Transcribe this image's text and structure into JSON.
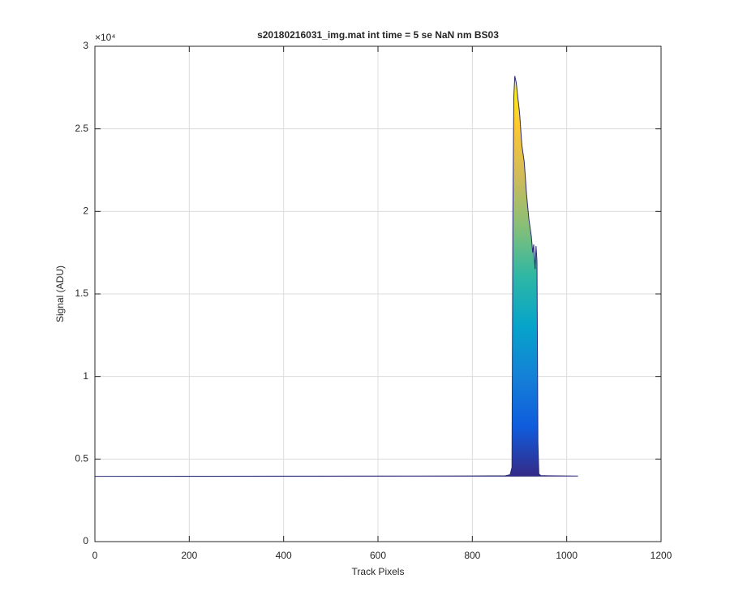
{
  "chart_data": {
    "type": "area",
    "title": "s20180216031_img.mat int time = 5 se  NaN nm BS03",
    "xlabel": "Track Pixels",
    "ylabel": "Signal (ADU)",
    "y_exponent": "×10⁴",
    "x": [
      0,
      200,
      400,
      600,
      800,
      870,
      880,
      884,
      886,
      888,
      890,
      893,
      896,
      900,
      905,
      910,
      915,
      920,
      925,
      928,
      930,
      933,
      935,
      937,
      939,
      941,
      945,
      960,
      1000,
      1024
    ],
    "values": [
      3950,
      3960,
      3965,
      3970,
      3980,
      3990,
      4050,
      4500,
      20000,
      27000,
      28200,
      27800,
      27000,
      26000,
      24000,
      23000,
      21000,
      19500,
      18500,
      17500,
      18000,
      16500,
      17900,
      17000,
      6000,
      4100,
      4000,
      3990,
      3980,
      3970
    ],
    "line_color": "#2a2a7a",
    "colormap": [
      "#352a87",
      "#0f5cdd",
      "#1481d6",
      "#06a4ca",
      "#2eb7a4",
      "#87bf77",
      "#d1bb59",
      "#fec832",
      "#f9fb0e"
    ],
    "xlim": [
      0,
      1200
    ],
    "xticks": [
      0,
      200,
      400,
      600,
      800,
      1000,
      1200
    ],
    "ylim": [
      0,
      30000
    ],
    "yticks": [
      {
        "value": 0,
        "label": "0"
      },
      {
        "value": 5000,
        "label": "0.5"
      },
      {
        "value": 10000,
        "label": "1"
      },
      {
        "value": 15000,
        "label": "1.5"
      },
      {
        "value": 20000,
        "label": "2"
      },
      {
        "value": 25000,
        "label": "2.5"
      },
      {
        "value": 30000,
        "label": "3"
      }
    ],
    "grid": true
  }
}
